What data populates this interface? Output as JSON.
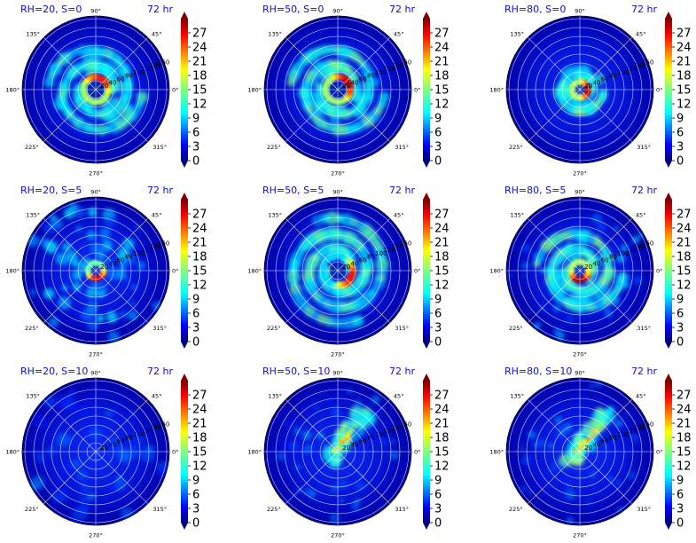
{
  "chart_data": {
    "type": "polar-heatmap",
    "grid": true,
    "colormap": "jet",
    "theta_ticks": [
      "0°",
      "45°",
      "90°",
      "135°",
      "180°",
      "225°",
      "270°",
      "315°"
    ],
    "radial_ticks": [
      "20",
      "40",
      "60",
      "80",
      "100",
      "120",
      "140",
      "160"
    ],
    "colorbar": {
      "ticks": [
        "0",
        "3",
        "6",
        "9",
        "12",
        "15",
        "18",
        "21",
        "24",
        "27"
      ],
      "range": [
        0,
        30
      ],
      "extend": "both"
    },
    "panels": [
      {
        "title": "RH=20, S=0",
        "time": "72 hr",
        "pattern": "ring-spiral",
        "rh": 20,
        "shear": 0
      },
      {
        "title": "RH=50, S=0",
        "time": "72 hr",
        "pattern": "ring-spiral",
        "rh": 50,
        "shear": 0
      },
      {
        "title": "RH=80, S=0",
        "time": "72 hr",
        "pattern": "compact-ring",
        "rh": 80,
        "shear": 0
      },
      {
        "title": "RH=20, S=5",
        "time": "72 hr",
        "pattern": "scattered-cells",
        "rh": 20,
        "shear": 5
      },
      {
        "title": "RH=50, S=5",
        "time": "72 hr",
        "pattern": "broad-spiral",
        "rh": 50,
        "shear": 5
      },
      {
        "title": "RH=80, S=5",
        "time": "72 hr",
        "pattern": "ring-spiral",
        "rh": 80,
        "shear": 5
      },
      {
        "title": "RH=20, S=10",
        "time": "72 hr",
        "pattern": "weak",
        "rh": 20,
        "shear": 10
      },
      {
        "title": "RH=50, S=10",
        "time": "72 hr",
        "pattern": "sheared-band",
        "rh": 50,
        "shear": 10
      },
      {
        "title": "RH=80, S=10",
        "time": "72 hr",
        "pattern": "sheared-band",
        "rh": 80,
        "shear": 10
      }
    ]
  }
}
